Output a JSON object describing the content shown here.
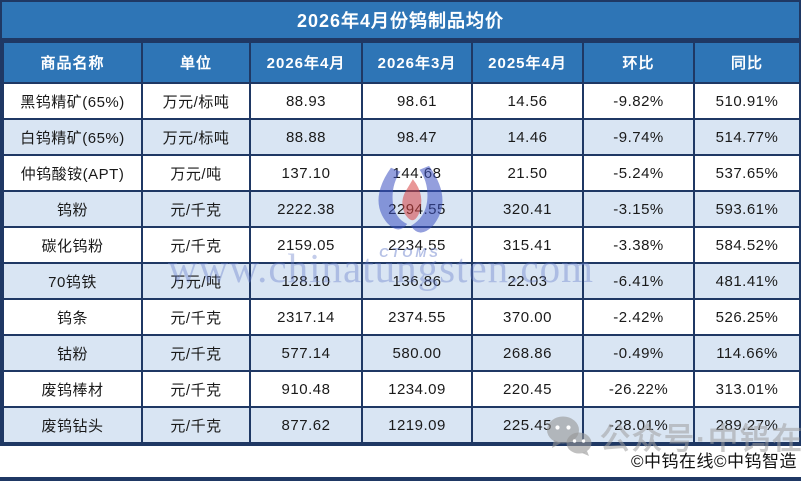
{
  "chart_data": {
    "type": "table",
    "title": "2026年4月份钨制品均价",
    "columns": [
      "商品名称",
      "单位",
      "2026年4月",
      "2026年3月",
      "2025年4月",
      "环比",
      "同比"
    ],
    "rows": [
      {
        "name": "黑钨精矿(65%)",
        "unit": "万元/标吨",
        "apr2026": "88.93",
        "mar2026": "98.61",
        "apr2025": "14.56",
        "mom": "-9.82%",
        "yoy": "510.91%"
      },
      {
        "name": "白钨精矿(65%)",
        "unit": "万元/标吨",
        "apr2026": "88.88",
        "mar2026": "98.47",
        "apr2025": "14.46",
        "mom": "-9.74%",
        "yoy": "514.77%"
      },
      {
        "name": "仲钨酸铵(APT)",
        "unit": "万元/吨",
        "apr2026": "137.10",
        "mar2026": "144.68",
        "apr2025": "21.50",
        "mom": "-5.24%",
        "yoy": "537.65%"
      },
      {
        "name": "钨粉",
        "unit": "元/千克",
        "apr2026": "2222.38",
        "mar2026": "2294.55",
        "apr2025": "320.41",
        "mom": "-3.15%",
        "yoy": "593.61%"
      },
      {
        "name": "碳化钨粉",
        "unit": "元/千克",
        "apr2026": "2159.05",
        "mar2026": "2234.55",
        "apr2025": "315.41",
        "mom": "-3.38%",
        "yoy": "584.52%"
      },
      {
        "name": "70钨铁",
        "unit": "万元/吨",
        "apr2026": "128.10",
        "mar2026": "136.86",
        "apr2025": "22.03",
        "mom": "-6.41%",
        "yoy": "481.41%"
      },
      {
        "name": "钨条",
        "unit": "元/千克",
        "apr2026": "2317.14",
        "mar2026": "2374.55",
        "apr2025": "370.00",
        "mom": "-2.42%",
        "yoy": "526.25%"
      },
      {
        "name": "钴粉",
        "unit": "元/千克",
        "apr2026": "577.14",
        "mar2026": "580.00",
        "apr2025": "268.86",
        "mom": "-0.49%",
        "yoy": "114.66%"
      },
      {
        "name": "废钨棒材",
        "unit": "元/千克",
        "apr2026": "910.48",
        "mar2026": "1234.09",
        "apr2025": "220.45",
        "mom": "-26.22%",
        "yoy": "313.01%"
      },
      {
        "name": "废钨钻头",
        "unit": "元/千克",
        "apr2026": "877.62",
        "mar2026": "1219.09",
        "apr2025": "225.45",
        "mom": "-28.01%",
        "yoy": "289.27%"
      }
    ],
    "legend": {
      "mom_color": "#00B05E",
      "yoy_color": "#FB1D1D",
      "header_bg": "#2E75B6",
      "alt_row_bg": "#D9E5F3",
      "border_color": "#1F3864"
    }
  },
  "watermarks": {
    "site": "www.chinatungsten.com",
    "logo_text": "CTOMS",
    "wechat_label": "公众号·中钨在线",
    "copyright": "©中钨在线©中钨智造"
  }
}
